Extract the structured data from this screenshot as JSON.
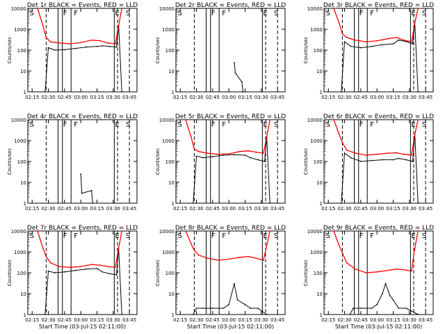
{
  "figure": {
    "ylabel": "Counts/sec",
    "xlabel": "Start Time (03-Jul-15 02:11:00)",
    "x_ticks": [
      "02:15",
      "02:30",
      "02:45",
      "03:00",
      "03:15",
      "03:30",
      "03:45"
    ],
    "y_ticks": [
      "1",
      "10",
      "100",
      "1000",
      "10000"
    ],
    "colors": {
      "events": "#000000",
      "lld": "#ff0000",
      "axes": "#000000",
      "background": "#ffffff"
    },
    "marker_letters": [
      "S",
      "F",
      "F",
      "E",
      "S"
    ]
  },
  "chart_data": [
    {
      "type": "line",
      "panel": "1r",
      "title": "Det 1r BLACK = Events, RED = LLD",
      "xlim": [
        "02:11",
        "03:52"
      ],
      "ylim": [
        1,
        10000
      ],
      "ylog": true,
      "series": [
        {
          "name": "Events",
          "x": [
            "02:27",
            "02:30",
            "02:36",
            "02:45",
            "02:55",
            "03:05",
            "03:15",
            "03:20",
            "03:27",
            "03:33",
            "03:35",
            "03:38"
          ],
          "values": [
            1,
            130,
            100,
            105,
            120,
            140,
            150,
            160,
            150,
            140,
            1500,
            1
          ]
        },
        {
          "name": "LLD",
          "x": [
            "02:20",
            "02:25",
            "02:28",
            "02:32",
            "02:40",
            "02:50",
            "03:00",
            "03:10",
            "03:18",
            "03:25",
            "03:32",
            "03:35",
            "03:38"
          ],
          "values": [
            10000,
            1500,
            400,
            250,
            220,
            200,
            230,
            300,
            280,
            220,
            200,
            1500,
            10000
          ]
        }
      ]
    },
    {
      "type": "line",
      "panel": "2r",
      "title": "Det 2r BLACK = Events, RED = LLD",
      "xlim": [
        "02:11",
        "03:52"
      ],
      "ylim": [
        1,
        10000
      ],
      "ylog": true,
      "series": [
        {
          "name": "Events",
          "x": [
            "03:05",
            "03:06",
            "03:12",
            "03:13"
          ],
          "values": [
            25,
            8,
            3,
            1
          ]
        }
      ]
    },
    {
      "type": "line",
      "panel": "3r",
      "title": "Det 3r BLACK = Events, RED = LLD",
      "xlim": [
        "02:11",
        "03:52"
      ],
      "ylim": [
        1,
        10000
      ],
      "ylog": true,
      "series": [
        {
          "name": "Events",
          "x": [
            "02:27",
            "02:30",
            "02:36",
            "02:45",
            "02:55",
            "03:05",
            "03:15",
            "03:20",
            "03:27",
            "03:33",
            "03:35",
            "03:38"
          ],
          "values": [
            1,
            250,
            150,
            130,
            150,
            180,
            200,
            300,
            260,
            200,
            2000,
            1
          ]
        },
        {
          "name": "LLD",
          "x": [
            "02:20",
            "02:25",
            "02:28",
            "02:32",
            "02:40",
            "02:50",
            "03:00",
            "03:10",
            "03:18",
            "03:25",
            "03:32",
            "03:35",
            "03:38"
          ],
          "values": [
            10000,
            2000,
            600,
            400,
            300,
            250,
            280,
            350,
            400,
            300,
            250,
            2000,
            10000
          ]
        }
      ]
    },
    {
      "type": "line",
      "panel": "4r",
      "title": "Det 4r BLACK = Events, RED = LLD",
      "xlim": [
        "02:11",
        "03:52"
      ],
      "ylim": [
        1,
        10000
      ],
      "ylog": true,
      "series": [
        {
          "name": "Events",
          "x": [
            "03:00",
            "03:01",
            "03:10",
            "03:11"
          ],
          "values": [
            25,
            3,
            4,
            1
          ]
        }
      ]
    },
    {
      "type": "line",
      "panel": "5r",
      "title": "Det 5r BLACK = Events, RED = LLD",
      "xlim": [
        "02:11",
        "03:52"
      ],
      "ylim": [
        1,
        10000
      ],
      "ylog": true,
      "series": [
        {
          "name": "Events",
          "x": [
            "02:27",
            "02:30",
            "02:36",
            "02:45",
            "02:55",
            "03:05",
            "03:15",
            "03:20",
            "03:27",
            "03:33",
            "03:35",
            "03:38"
          ],
          "values": [
            1,
            180,
            150,
            170,
            200,
            210,
            200,
            150,
            120,
            100,
            1500,
            1
          ]
        },
        {
          "name": "LLD",
          "x": [
            "02:20",
            "02:25",
            "02:28",
            "02:32",
            "02:40",
            "02:50",
            "03:00",
            "03:10",
            "03:18",
            "03:25",
            "03:32",
            "03:35",
            "03:38"
          ],
          "values": [
            10000,
            1500,
            400,
            300,
            250,
            220,
            230,
            300,
            320,
            280,
            250,
            1500,
            10000
          ]
        }
      ]
    },
    {
      "type": "line",
      "panel": "6r",
      "title": "Det 6r BLACK = Events, RED = LLD",
      "xlim": [
        "02:11",
        "03:52"
      ],
      "ylim": [
        1,
        10000
      ],
      "ylog": true,
      "series": [
        {
          "name": "Events",
          "x": [
            "02:27",
            "02:30",
            "02:36",
            "02:45",
            "02:55",
            "03:05",
            "03:15",
            "03:20",
            "03:27",
            "03:33",
            "03:35",
            "03:38"
          ],
          "values": [
            1,
            250,
            150,
            100,
            110,
            120,
            120,
            140,
            120,
            100,
            2000,
            1
          ]
        },
        {
          "name": "LLD",
          "x": [
            "02:20",
            "02:25",
            "02:28",
            "02:32",
            "02:40",
            "02:50",
            "03:00",
            "03:10",
            "03:18",
            "03:25",
            "03:32",
            "03:35",
            "03:38"
          ],
          "values": [
            10000,
            2000,
            800,
            350,
            250,
            200,
            220,
            250,
            260,
            220,
            200,
            2000,
            10000
          ]
        }
      ]
    },
    {
      "type": "line",
      "panel": "7r",
      "title": "Det 7r BLACK = Events, RED = LLD",
      "xlim": [
        "02:11",
        "03:52"
      ],
      "ylim": [
        1,
        10000
      ],
      "ylog": true,
      "series": [
        {
          "name": "Events",
          "x": [
            "02:27",
            "02:30",
            "02:36",
            "02:45",
            "02:55",
            "03:05",
            "03:15",
            "03:20",
            "03:27",
            "03:33",
            "03:35",
            "03:38"
          ],
          "values": [
            1,
            120,
            100,
            110,
            130,
            150,
            160,
            110,
            90,
            80,
            1500,
            1
          ]
        },
        {
          "name": "LLD",
          "x": [
            "02:20",
            "02:25",
            "02:28",
            "02:32",
            "02:40",
            "02:50",
            "03:00",
            "03:10",
            "03:18",
            "03:25",
            "03:32",
            "03:35",
            "03:38"
          ],
          "values": [
            10000,
            1500,
            600,
            300,
            200,
            180,
            200,
            250,
            230,
            200,
            180,
            1500,
            10000
          ]
        }
      ]
    },
    {
      "type": "line",
      "panel": "8r",
      "title": "Det 8r BLACK = Events, RED = LLD",
      "xlim": [
        "02:11",
        "03:52"
      ],
      "ylim": [
        1,
        10000
      ],
      "ylog": true,
      "series": [
        {
          "name": "Events",
          "x": [
            "02:27",
            "02:30",
            "02:36",
            "02:45",
            "02:55",
            "03:00",
            "03:05",
            "03:08",
            "03:15",
            "03:20",
            "03:27",
            "03:35"
          ],
          "values": [
            1,
            2,
            2,
            2,
            2,
            3,
            30,
            5,
            3,
            2,
            2,
            1
          ]
        },
        {
          "name": "LLD",
          "x": [
            "02:20",
            "02:25",
            "02:28",
            "02:32",
            "02:40",
            "02:50",
            "03:00",
            "03:10",
            "03:18",
            "03:25",
            "03:32",
            "03:35",
            "03:38"
          ],
          "values": [
            10000,
            2500,
            1200,
            700,
            500,
            400,
            450,
            550,
            600,
            500,
            400,
            2000,
            10000
          ]
        }
      ]
    },
    {
      "type": "line",
      "panel": "9r",
      "title": "Det 9r BLACK = Events, RED = LLD",
      "xlim": [
        "02:11",
        "03:52"
      ],
      "ylim": [
        1,
        10000
      ],
      "ylog": true,
      "series": [
        {
          "name": "Events",
          "x": [
            "02:35",
            "02:38",
            "02:45",
            "02:55",
            "03:00",
            "03:05",
            "03:08",
            "03:12",
            "03:15",
            "03:20",
            "03:27",
            "03:38"
          ],
          "values": [
            1,
            2,
            2,
            2,
            3,
            10,
            30,
            8,
            5,
            2,
            2,
            1
          ]
        },
        {
          "name": "LLD",
          "x": [
            "02:20",
            "02:25",
            "02:28",
            "02:32",
            "02:40",
            "02:50",
            "03:00",
            "03:10",
            "03:18",
            "03:25",
            "03:32",
            "03:35",
            "03:38"
          ],
          "values": [
            10000,
            2000,
            900,
            300,
            150,
            100,
            110,
            130,
            150,
            140,
            120,
            1500,
            10000
          ]
        }
      ]
    }
  ]
}
